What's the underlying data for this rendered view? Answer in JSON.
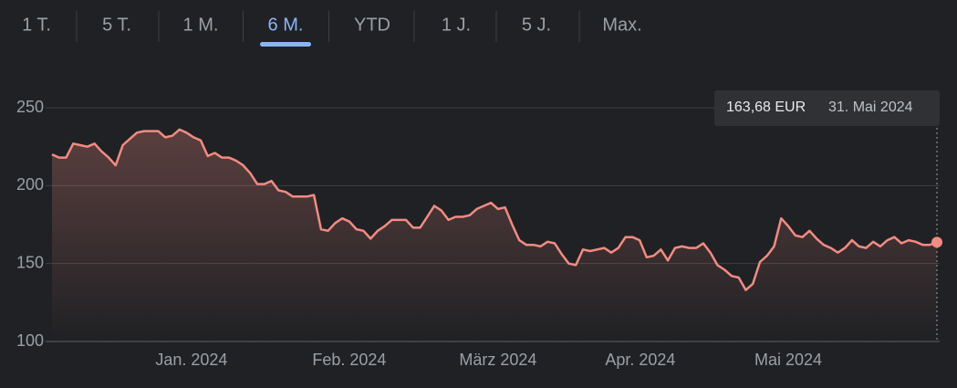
{
  "tabs": [
    "1 T.",
    "5 T.",
    "1 M.",
    "6 M.",
    "YTD",
    "1 J.",
    "5 J.",
    "Max."
  ],
  "active_tab": 3,
  "chart_data": {
    "type": "line",
    "series": [
      {
        "color": "#f28b82",
        "values": [
          220,
          218,
          218,
          227,
          226,
          225,
          227,
          222,
          218,
          213,
          226,
          230,
          234,
          235,
          235,
          235,
          231,
          232,
          236,
          234,
          231,
          229,
          219,
          221,
          218,
          218,
          216,
          213,
          208,
          201,
          201,
          203,
          197,
          196,
          193,
          193,
          193,
          194,
          172,
          171,
          176,
          179,
          177,
          172,
          171,
          166,
          171,
          174,
          178,
          178,
          178,
          173,
          173,
          180,
          187,
          184,
          178,
          180,
          180,
          181,
          185,
          187,
          189,
          185,
          186,
          175,
          165,
          162,
          162,
          161,
          164,
          163,
          156,
          150,
          149,
          159,
          158,
          159,
          160,
          157,
          160,
          167,
          167,
          165,
          154,
          155,
          159,
          152,
          160,
          161,
          160,
          160,
          163,
          157,
          149,
          146,
          142,
          141,
          133,
          137,
          151,
          155,
          161,
          179,
          174,
          168,
          167,
          171,
          166,
          162,
          160,
          157,
          160,
          165,
          161,
          160,
          164,
          161,
          165,
          167,
          163,
          165,
          164,
          162,
          162,
          163.68
        ]
      }
    ],
    "xlim": [
      0,
      125
    ],
    "xticks": [
      {
        "value": 19.7,
        "label": "Jan. 2024"
      },
      {
        "value": 42,
        "label": "Feb. 2024"
      },
      {
        "value": 63,
        "label": "März 2024"
      },
      {
        "value": 83.1,
        "label": "Apr. 2024"
      },
      {
        "value": 104,
        "label": "Mai 2024"
      }
    ],
    "ylim": [
      100,
      250
    ],
    "yticks": [
      100,
      150,
      200,
      250
    ],
    "grid": true,
    "tooltip": {
      "value": "163,68 EUR",
      "date": "31. Mai 2024"
    }
  }
}
